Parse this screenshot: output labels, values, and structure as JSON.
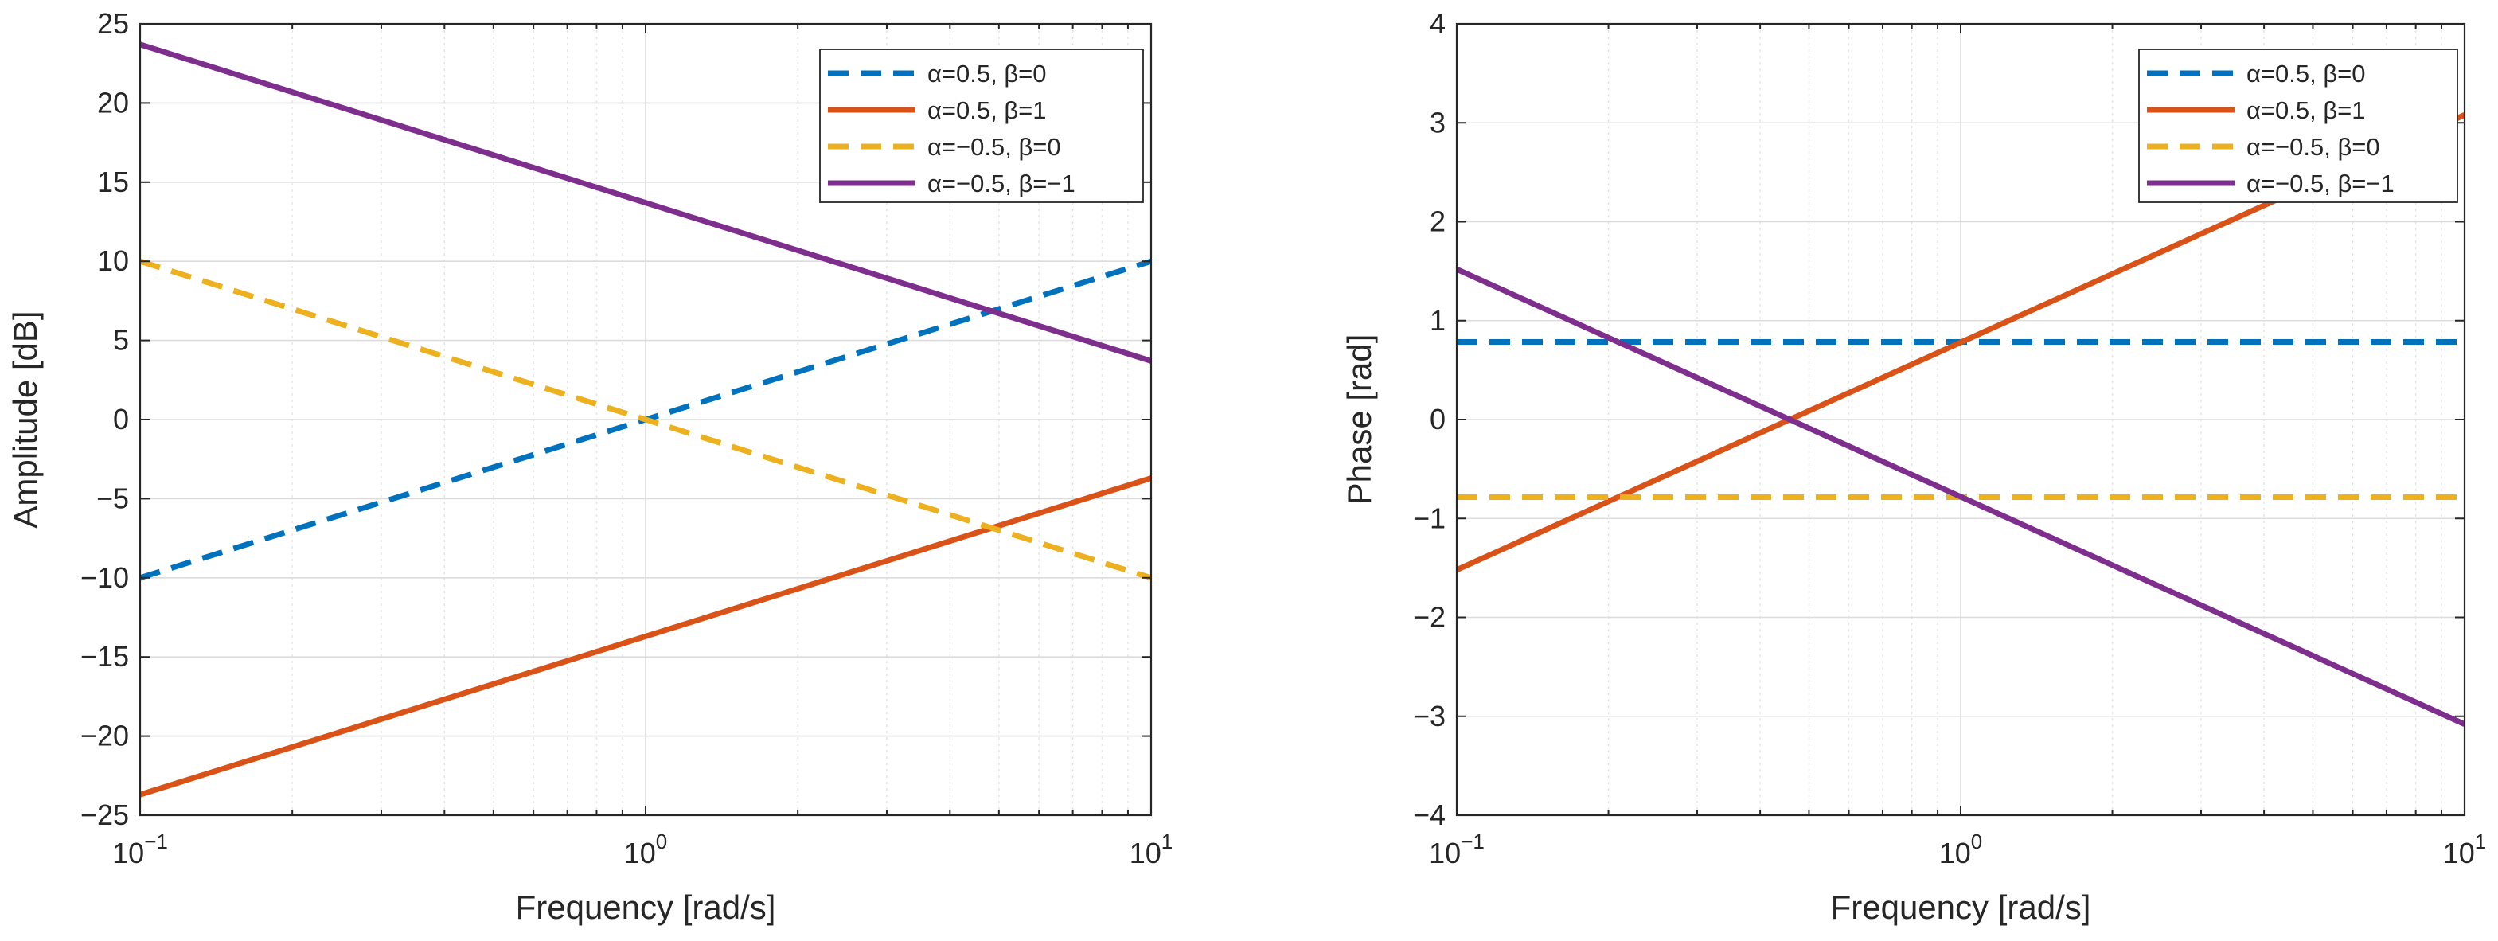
{
  "chart_data": [
    {
      "type": "line",
      "xscale": "log",
      "xlim": [
        0.1,
        10
      ],
      "ylim": [
        -25,
        25
      ],
      "xlabel": "Frequency [rad/s]",
      "ylabel": "Amplitude [dB]",
      "grid": true,
      "xticks": [
        {
          "value": 0.1,
          "base": "10",
          "exp": "−1"
        },
        {
          "value": 1,
          "base": "10",
          "exp": "0"
        },
        {
          "value": 10,
          "base": "10",
          "exp": "1"
        }
      ],
      "yticks": [
        25,
        20,
        15,
        10,
        5,
        0,
        -5,
        -10,
        -15,
        -20,
        -25
      ],
      "ytick_labels": [
        "25",
        "20",
        "15",
        "10",
        "5",
        "0",
        "−5",
        "−10",
        "−15",
        "−20",
        "−25"
      ],
      "legend_position": "top-right",
      "series": [
        {
          "name": "α=0.5, β=0",
          "alpha": "α=0.5",
          "beta": "β=0",
          "color": "#0072BD",
          "style": "dashed",
          "x": [
            0.1,
            10
          ],
          "y": [
            -10,
            10
          ]
        },
        {
          "name": "α=0.5, β=1",
          "alpha": "α=0.5",
          "beta": "β=1",
          "color": "#D95319",
          "style": "solid",
          "x": [
            0.1,
            10
          ],
          "y": [
            -23.7,
            -3.7
          ]
        },
        {
          "name": "α=−0.5, β=0",
          "alpha": "α=−0.5",
          "beta": "β=0",
          "color": "#EDB120",
          "style": "dashed",
          "x": [
            0.1,
            10
          ],
          "y": [
            10,
            -10
          ]
        },
        {
          "name": "α=−0.5, β=−1",
          "alpha": "α=−0.5",
          "beta": "β=−1",
          "color": "#7E2F8E",
          "style": "solid",
          "x": [
            0.1,
            10
          ],
          "y": [
            23.7,
            3.7
          ]
        }
      ]
    },
    {
      "type": "line",
      "xscale": "log",
      "xlim": [
        0.1,
        10
      ],
      "ylim": [
        -4,
        4
      ],
      "xlabel": "Frequency [rad/s]",
      "ylabel": "Phase [rad]",
      "grid": true,
      "xticks": [
        {
          "value": 0.1,
          "base": "10",
          "exp": "−1"
        },
        {
          "value": 1,
          "base": "10",
          "exp": "0"
        },
        {
          "value": 10,
          "base": "10",
          "exp": "1"
        }
      ],
      "yticks": [
        4,
        3,
        2,
        1,
        0,
        -1,
        -2,
        -3,
        -4
      ],
      "ytick_labels": [
        "4",
        "3",
        "2",
        "1",
        "0",
        "−1",
        "−2",
        "−3",
        "−4"
      ],
      "legend_position": "top-right",
      "series": [
        {
          "name": "α=0.5, β=0",
          "alpha": "α=0.5",
          "beta": "β=0",
          "color": "#0072BD",
          "style": "dashed",
          "x": [
            0.1,
            10
          ],
          "y": [
            0.785,
            0.785
          ]
        },
        {
          "name": "α=0.5, β=1",
          "alpha": "α=0.5",
          "beta": "β=1",
          "color": "#D95319",
          "style": "solid",
          "x": [
            0.1,
            10
          ],
          "y": [
            -1.52,
            3.08
          ]
        },
        {
          "name": "α=−0.5, β=0",
          "alpha": "α=−0.5",
          "beta": "β=0",
          "color": "#EDB120",
          "style": "dashed",
          "x": [
            0.1,
            10
          ],
          "y": [
            -0.785,
            -0.785
          ]
        },
        {
          "name": "α=−0.5, β=−1",
          "alpha": "α=−0.5",
          "beta": "β=−1",
          "color": "#7E2F8E",
          "style": "solid",
          "x": [
            0.1,
            10
          ],
          "y": [
            1.52,
            -3.08
          ]
        }
      ]
    }
  ]
}
